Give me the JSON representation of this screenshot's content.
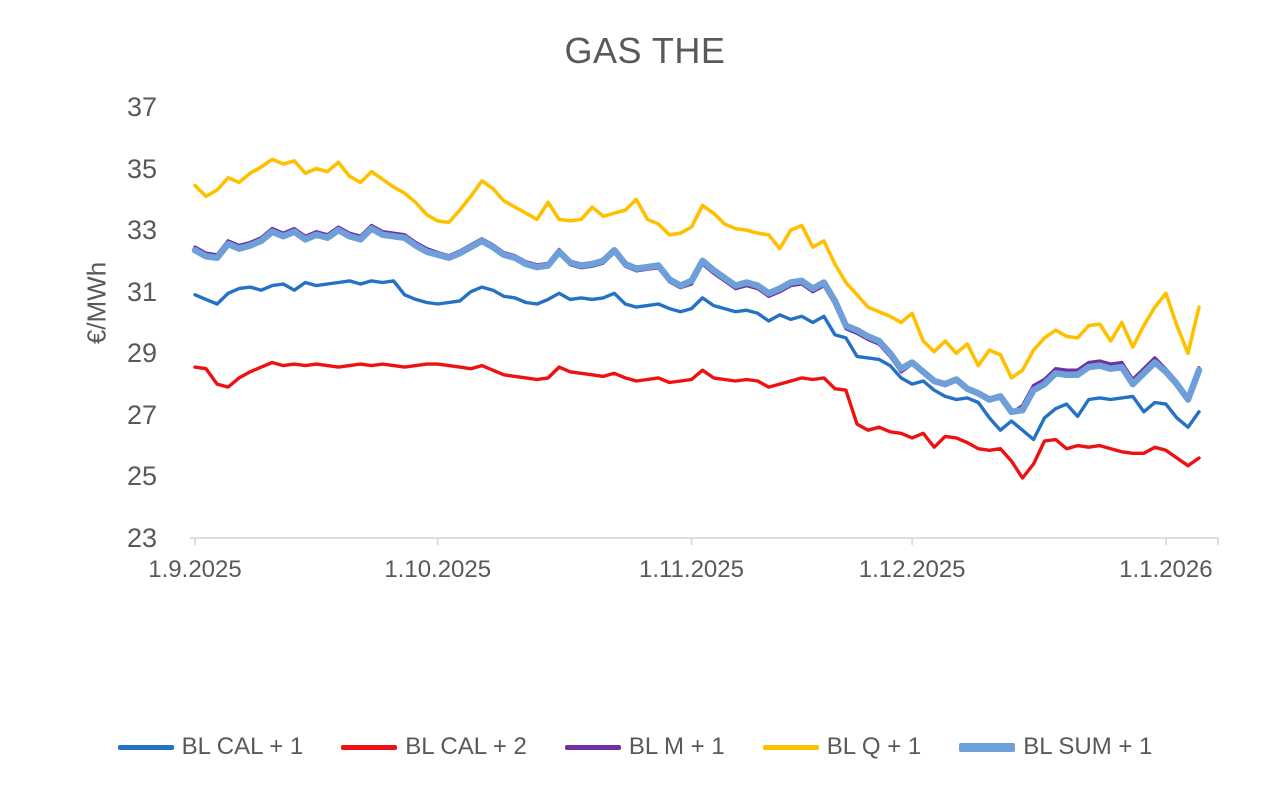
{
  "chart_data": {
    "type": "line",
    "title": "GAS THE",
    "ylabel": "€/MWh",
    "xlabel": "",
    "grid": false,
    "legend_position": "bottom",
    "ylim": [
      23,
      37
    ],
    "y_ticks": [
      37,
      35,
      33,
      31,
      29,
      27,
      25,
      23
    ],
    "x_tick_labels": [
      "1.9.2025",
      "1.10.2025",
      "1.11.2025",
      "1.12.2025",
      "1.1.2026"
    ],
    "x_tick_indices": [
      0,
      22,
      45,
      65,
      88
    ],
    "axis_color": "#d9d9d9",
    "text_color": "#595959",
    "x": [
      "1.9.2025",
      "2.9.2025",
      "3.9.2025",
      "4.9.2025",
      "5.9.2025",
      "8.9.2025",
      "9.9.2025",
      "10.9.2025",
      "11.9.2025",
      "12.9.2025",
      "15.9.2025",
      "16.9.2025",
      "17.9.2025",
      "18.9.2025",
      "19.9.2025",
      "22.9.2025",
      "23.9.2025",
      "24.9.2025",
      "25.9.2025",
      "26.9.2025",
      "29.9.2025",
      "30.9.2025",
      "1.10.2025",
      "2.10.2025",
      "3.10.2025",
      "6.10.2025",
      "7.10.2025",
      "8.10.2025",
      "9.10.2025",
      "10.10.2025",
      "13.10.2025",
      "14.10.2025",
      "15.10.2025",
      "16.10.2025",
      "17.10.2025",
      "20.10.2025",
      "21.10.2025",
      "22.10.2025",
      "23.10.2025",
      "24.10.2025",
      "27.10.2025",
      "28.10.2025",
      "29.10.2025",
      "30.10.2025",
      "31.10.2025",
      "3.11.2025",
      "4.11.2025",
      "5.11.2025",
      "6.11.2025",
      "7.11.2025",
      "10.11.2025",
      "11.11.2025",
      "12.11.2025",
      "13.11.2025",
      "14.11.2025",
      "17.11.2025",
      "18.11.2025",
      "19.11.2025",
      "20.11.2025",
      "21.11.2025",
      "24.11.2025",
      "25.11.2025",
      "26.11.2025",
      "27.11.2025",
      "28.11.2025",
      "1.12.2025",
      "2.12.2025",
      "3.12.2025",
      "4.12.2025",
      "5.12.2025",
      "8.12.2025",
      "9.12.2025",
      "10.12.2025",
      "11.12.2025",
      "12.12.2025",
      "15.12.2025",
      "16.12.2025",
      "17.12.2025",
      "18.12.2025",
      "19.12.2025",
      "22.12.2025",
      "23.12.2025",
      "24.12.2025",
      "25.12.2025",
      "26.12.2025",
      "29.12.2025",
      "30.12.2025",
      "31.12.2025",
      "1.1.2026",
      "2.1.2026",
      "5.1.2026",
      "6.1.2026"
    ],
    "series": [
      {
        "id": "bl-cal-1",
        "name": "BL CAL + 1",
        "color": "#2572c4",
        "line_width": 3.4,
        "values": [
          30.9,
          30.75,
          30.6,
          30.95,
          31.1,
          31.15,
          31.05,
          31.2,
          31.25,
          31.05,
          31.3,
          31.2,
          31.25,
          31.3,
          31.35,
          31.25,
          31.35,
          31.3,
          31.35,
          30.9,
          30.75,
          30.65,
          30.6,
          30.65,
          30.7,
          31.0,
          31.15,
          31.05,
          30.85,
          30.8,
          30.65,
          30.6,
          30.75,
          30.95,
          30.75,
          30.8,
          30.75,
          30.8,
          30.95,
          30.6,
          30.5,
          30.55,
          30.6,
          30.45,
          30.35,
          30.45,
          30.8,
          30.55,
          30.45,
          30.35,
          30.4,
          30.3,
          30.05,
          30.25,
          30.1,
          30.2,
          30.0,
          30.2,
          29.6,
          29.5,
          28.9,
          28.85,
          28.8,
          28.6,
          28.2,
          28.0,
          28.1,
          27.8,
          27.6,
          27.5,
          27.55,
          27.4,
          26.9,
          26.5,
          26.8,
          26.5,
          26.2,
          26.9,
          27.2,
          27.35,
          26.95,
          27.5,
          27.55,
          27.5,
          27.55,
          27.6,
          27.1,
          27.4,
          27.35,
          26.9,
          26.6,
          27.1
        ]
      },
      {
        "id": "bl-cal-2",
        "name": "BL CAL + 2",
        "color": "#ee1111",
        "line_width": 3.4,
        "values": [
          28.55,
          28.5,
          28.0,
          27.9,
          28.2,
          28.4,
          28.55,
          28.7,
          28.6,
          28.65,
          28.6,
          28.65,
          28.6,
          28.55,
          28.6,
          28.65,
          28.6,
          28.65,
          28.6,
          28.55,
          28.6,
          28.65,
          28.65,
          28.6,
          28.55,
          28.5,
          28.6,
          28.45,
          28.3,
          28.25,
          28.2,
          28.15,
          28.2,
          28.55,
          28.4,
          28.35,
          28.3,
          28.25,
          28.35,
          28.2,
          28.1,
          28.15,
          28.2,
          28.05,
          28.1,
          28.15,
          28.45,
          28.2,
          28.15,
          28.1,
          28.15,
          28.1,
          27.9,
          28.0,
          28.1,
          28.2,
          28.15,
          28.2,
          27.85,
          27.8,
          26.7,
          26.5,
          26.6,
          26.45,
          26.4,
          26.25,
          26.4,
          25.95,
          26.3,
          26.25,
          26.1,
          25.9,
          25.85,
          25.9,
          25.5,
          24.95,
          25.4,
          26.15,
          26.2,
          25.9,
          26.0,
          25.95,
          26.0,
          25.9,
          25.8,
          25.75,
          25.75,
          25.95,
          25.85,
          25.6,
          25.35,
          25.6
        ]
      },
      {
        "id": "bl-m-1",
        "name": "BL M + 1",
        "color": "#7030a0",
        "line_width": 3.4,
        "values": [
          32.45,
          32.25,
          32.2,
          32.65,
          32.5,
          32.6,
          32.75,
          33.05,
          32.9,
          33.05,
          32.8,
          32.95,
          32.85,
          33.1,
          32.9,
          32.8,
          33.15,
          32.95,
          32.9,
          32.85,
          32.6,
          32.4,
          32.27,
          32.17,
          32.32,
          32.52,
          32.72,
          32.52,
          32.27,
          32.17,
          31.97,
          31.87,
          31.92,
          32.37,
          31.88,
          31.78,
          31.83,
          31.93,
          32.28,
          31.83,
          31.68,
          31.73,
          31.78,
          31.33,
          31.13,
          31.25,
          31.9,
          31.6,
          31.35,
          31.1,
          31.2,
          31.1,
          30.85,
          31.0,
          31.2,
          31.25,
          31.0,
          31.2,
          30.6,
          29.8,
          29.65,
          29.45,
          29.3,
          28.9,
          28.4,
          28.65,
          28.35,
          28.05,
          27.95,
          28.1,
          27.8,
          27.65,
          27.45,
          27.55,
          27.05,
          27.3,
          27.95,
          28.15,
          28.5,
          28.45,
          28.45,
          28.7,
          28.75,
          28.65,
          28.7,
          28.15,
          28.5,
          28.85,
          28.48,
          28.08,
          27.58,
          28.53
        ]
      },
      {
        "id": "bl-q-1",
        "name": "BL Q + 1",
        "color": "#ffc000",
        "line_width": 3.6,
        "values": [
          34.45,
          34.1,
          34.3,
          34.7,
          34.55,
          34.85,
          35.05,
          35.3,
          35.15,
          35.25,
          34.85,
          35.0,
          34.9,
          35.2,
          34.75,
          34.55,
          34.9,
          34.65,
          34.4,
          34.2,
          33.9,
          33.5,
          33.3,
          33.25,
          33.65,
          34.1,
          34.6,
          34.35,
          33.95,
          33.75,
          33.55,
          33.35,
          33.9,
          33.35,
          33.3,
          33.35,
          33.75,
          33.45,
          33.55,
          33.65,
          34.0,
          33.35,
          33.2,
          32.85,
          32.9,
          33.1,
          33.8,
          33.55,
          33.2,
          33.05,
          33.0,
          32.9,
          32.85,
          32.4,
          33.0,
          33.15,
          32.45,
          32.65,
          31.9,
          31.3,
          30.9,
          30.5,
          30.35,
          30.2,
          30.0,
          30.3,
          29.4,
          29.05,
          29.4,
          29.0,
          29.3,
          28.6,
          29.1,
          28.95,
          28.2,
          28.45,
          29.1,
          29.5,
          29.75,
          29.55,
          29.5,
          29.9,
          29.95,
          29.4,
          30.0,
          29.2,
          29.9,
          30.5,
          30.95,
          29.9,
          29.0,
          30.5
        ]
      },
      {
        "id": "bl-sum-1",
        "name": "BL SUM + 1",
        "color": "#6e9fd8",
        "line_width": 6.5,
        "values": [
          32.35,
          32.15,
          32.1,
          32.55,
          32.4,
          32.5,
          32.65,
          32.95,
          32.8,
          32.95,
          32.7,
          32.85,
          32.75,
          33.0,
          32.8,
          32.7,
          33.05,
          32.85,
          32.8,
          32.75,
          32.5,
          32.3,
          32.2,
          32.1,
          32.25,
          32.45,
          32.65,
          32.45,
          32.2,
          32.1,
          31.9,
          31.8,
          31.85,
          32.3,
          31.95,
          31.85,
          31.9,
          32.0,
          32.35,
          31.9,
          31.75,
          31.8,
          31.85,
          31.4,
          31.2,
          31.35,
          32.0,
          31.7,
          31.45,
          31.2,
          31.3,
          31.2,
          30.95,
          31.1,
          31.3,
          31.35,
          31.1,
          31.3,
          30.7,
          29.9,
          29.75,
          29.55,
          29.4,
          29.0,
          28.5,
          28.7,
          28.4,
          28.1,
          28.0,
          28.15,
          27.85,
          27.7,
          27.5,
          27.6,
          27.1,
          27.15,
          27.8,
          28.0,
          28.35,
          28.3,
          28.3,
          28.55,
          28.6,
          28.5,
          28.55,
          28.0,
          28.35,
          28.7,
          28.4,
          28.0,
          27.5,
          28.45
        ]
      }
    ]
  }
}
